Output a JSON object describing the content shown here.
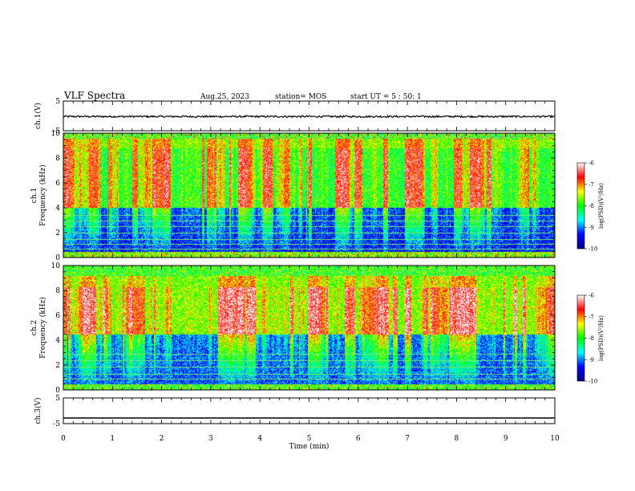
{
  "header": {
    "title": "VLF Spectra",
    "date": "Aug.25, 2023",
    "station": "station= MOS",
    "start": "start  UT =  5 : 50: 1"
  },
  "chart_data": [
    {
      "type": "line",
      "panel": "ch1-waveform",
      "ylabel": "ch.1(V)",
      "ylim": [
        -5,
        5
      ],
      "yticks": [
        "5",
        "-5"
      ],
      "xlim": [
        0,
        10
      ],
      "series": [
        {
          "values": [
            -0.2,
            -0.2
          ]
        }
      ]
    },
    {
      "type": "heatmap",
      "panel": "ch1-spectrogram",
      "ylabel_channel": "ch.1",
      "ylabel": "Frequency (kHz)",
      "ylim": [
        0,
        10
      ],
      "yticks": [
        "0",
        "2",
        "4",
        "6",
        "8",
        "10"
      ],
      "xlim": [
        0,
        10
      ],
      "colorbar": {
        "label": "log(PSD)(V²/Hz)",
        "range": [
          -10,
          -6
        ],
        "ticks": [
          "-6",
          "-7",
          "-8",
          "-9",
          "-10"
        ]
      }
    },
    {
      "type": "heatmap",
      "panel": "ch2-spectrogram",
      "ylabel_channel": "ch.2",
      "ylabel": "Frequency (kHz)",
      "ylim": [
        0,
        10
      ],
      "yticks": [
        "0",
        "2",
        "4",
        "6",
        "8",
        "10"
      ],
      "xlim": [
        0,
        10
      ],
      "colorbar": {
        "label": "log(PSD)(V²/Hz)",
        "range": [
          -10,
          -6
        ],
        "ticks": [
          "-6",
          "-7",
          "-8",
          "-9",
          "-10"
        ]
      }
    },
    {
      "type": "line",
      "panel": "ch3-waveform",
      "ylabel": "ch.3(V)",
      "ylim": [
        -5,
        5
      ],
      "yticks": [
        "5",
        "-5"
      ],
      "xlim": [
        0,
        10
      ],
      "series": [
        {
          "values": [
            -2.8,
            -2.8
          ]
        }
      ]
    }
  ],
  "xaxis": {
    "label": "Time  (min)",
    "ticks": [
      "0",
      "1",
      "2",
      "3",
      "4",
      "5",
      "6",
      "7",
      "8",
      "9",
      "10"
    ]
  },
  "colors": {
    "cmap": [
      "#000080",
      "#0000ff",
      "#00ffff",
      "#00ff00",
      "#ffff00",
      "#ff0000",
      "#ffffff"
    ]
  }
}
